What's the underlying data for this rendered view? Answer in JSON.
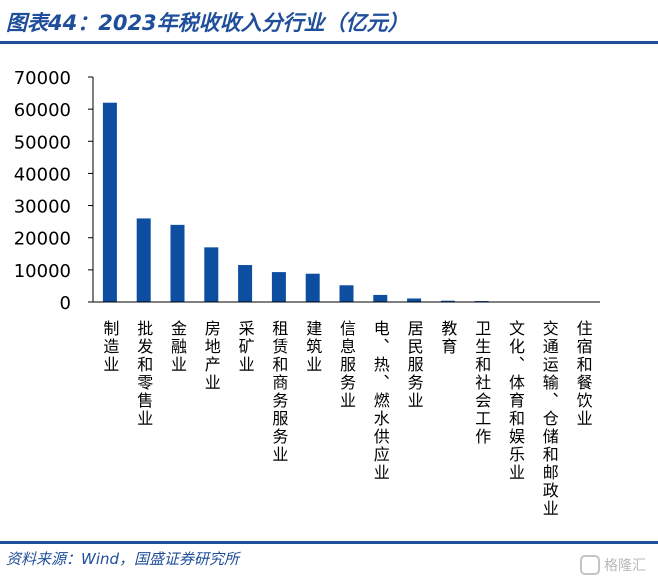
{
  "figure": {
    "title": "图表44：2023年税收收入分行业（亿元）",
    "source": "资料来源：Wind，国盛证券研究所",
    "watermark": "格隆汇"
  },
  "colors": {
    "accent": "#1f4e9a",
    "bar": "#0d4ea1",
    "axis": "#000000"
  },
  "chart_data": {
    "type": "bar",
    "title": "",
    "xlabel": "",
    "ylabel": "",
    "ylim": [
      0,
      70000
    ],
    "yticks": [
      0,
      10000,
      20000,
      30000,
      40000,
      50000,
      60000,
      70000
    ],
    "grid": false,
    "legend": "none",
    "categories": [
      "制造业",
      "批发和零售业",
      "金融业",
      "房地产业",
      "采矿业",
      "租赁和商务服务业",
      "建筑业",
      "信息服务业",
      "电、热、燃水供应业",
      "居民服务业",
      "教育",
      "卫生和社会工作",
      "文化、体育和娱乐业",
      "交通运输、仓储和邮政业",
      "住宿和餐饮业"
    ],
    "values": [
      62000,
      26000,
      24000,
      17000,
      11500,
      9300,
      8800,
      5200,
      2200,
      1100,
      400,
      300,
      0,
      0,
      0
    ]
  }
}
